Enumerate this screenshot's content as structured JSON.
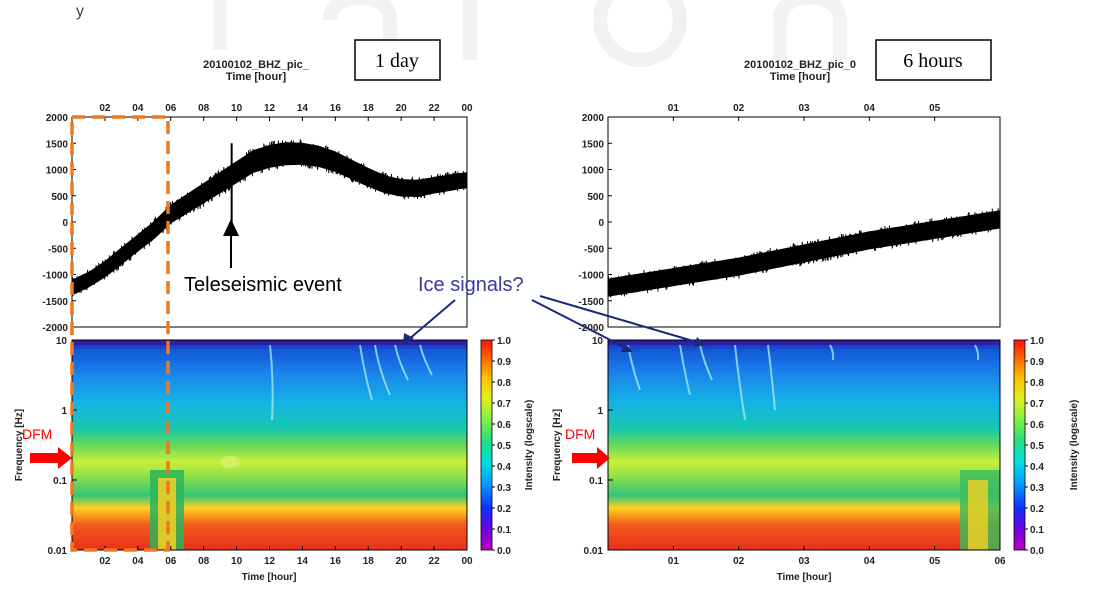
{
  "watermark": "y",
  "colors": {
    "trace": "#000000",
    "highlight_box": "#f07820",
    "arrow_black": "#000000",
    "arrow_ice": "#1a2a7a",
    "ice_text": "#3a3aa0",
    "dfm_arrow": "#ff0000"
  },
  "annotations": {
    "teleseismic": "Teleseismic event",
    "ice": "Ice signals?",
    "dfm_left": "DFM",
    "dfm_right": "DFM"
  },
  "chart_data": [
    {
      "type": "line",
      "panel": "left-waveform",
      "title_line1": "20100102_BHZ_pic_",
      "title_line2": "Time [hour]",
      "box_label": "1 day",
      "x_tick_labels": [
        "02",
        "04",
        "06",
        "08",
        "10",
        "12",
        "14",
        "16",
        "18",
        "20",
        "22",
        "00"
      ],
      "xlim_hours": [
        0,
        24
      ],
      "ylim": [
        -2000,
        2000
      ],
      "y_ticks": [
        -2000,
        -1500,
        -1000,
        -500,
        0,
        500,
        1000,
        1500,
        2000
      ],
      "series": [
        {
          "x": [
            0,
            1,
            2,
            3,
            4,
            5,
            6,
            7,
            8,
            9,
            10,
            11,
            12,
            13,
            14,
            15,
            16,
            17,
            18,
            19,
            20,
            21,
            22,
            23,
            24
          ],
          "y": [
            -1250,
            -1100,
            -900,
            -650,
            -400,
            -150,
            150,
            350,
            550,
            750,
            950,
            1150,
            1250,
            1300,
            1300,
            1250,
            1150,
            1000,
            850,
            720,
            650,
            640,
            700,
            750,
            800
          ],
          "amplitude": [
            200,
            200,
            210,
            220,
            220,
            230,
            240,
            250,
            260,
            270,
            280,
            290,
            290,
            290,
            280,
            270,
            260,
            250,
            240,
            230,
            220,
            220,
            210,
            210,
            200
          ]
        }
      ],
      "event": {
        "x": 9.7,
        "y_max": 1500,
        "y_min": -50
      },
      "highlight_hours": [
        0,
        6
      ]
    },
    {
      "type": "heatmap",
      "panel": "left-spectrogram",
      "xlabel": "Time [hour]",
      "ylabel": "Frequency [Hz]",
      "x_tick_labels": [
        "02",
        "04",
        "06",
        "08",
        "10",
        "12",
        "14",
        "16",
        "18",
        "20",
        "22",
        "00"
      ],
      "xlim_hours": [
        0,
        24
      ],
      "ylim": [
        0.01,
        10
      ],
      "y_scale": "log",
      "y_tick_labels": [
        "0.01",
        "0.1",
        "1",
        "10"
      ],
      "colorbar_label": "Intensity (logscale)",
      "colorbar_ticks": [
        "0.0",
        "0.1",
        "0.2",
        "0.3",
        "0.4",
        "0.5",
        "0.6",
        "0.7",
        "0.8",
        "0.9",
        "1.0"
      ]
    },
    {
      "type": "line",
      "panel": "right-waveform",
      "title_line1": "20100102_BHZ_pic_0",
      "title_line2": "Time [hour]",
      "box_label": "6 hours",
      "x_tick_labels": [
        "01",
        "02",
        "03",
        "04",
        "05"
      ],
      "xlim_hours": [
        0,
        6
      ],
      "ylim": [
        -2000,
        2000
      ],
      "y_ticks": [
        -2000,
        -1500,
        -1000,
        -500,
        0,
        500,
        1000,
        1500,
        2000
      ],
      "series": [
        {
          "x": [
            0,
            1,
            2,
            3,
            4,
            5,
            6
          ],
          "y": [
            -1250,
            -1050,
            -850,
            -600,
            -350,
            -150,
            50
          ],
          "amplitude": [
            230,
            230,
            230,
            230,
            230,
            230,
            230
          ]
        }
      ]
    },
    {
      "type": "heatmap",
      "panel": "right-spectrogram",
      "xlabel": "Time [hour]",
      "ylabel": "Frequency [Hz]",
      "x_tick_labels": [
        "01",
        "02",
        "03",
        "04",
        "05",
        "06"
      ],
      "xlim_hours": [
        0,
        6
      ],
      "ylim": [
        0.01,
        10
      ],
      "y_scale": "log",
      "y_tick_labels": [
        "0.01",
        "0.1",
        "1",
        "10"
      ],
      "colorbar_label": "Intensity (logscale)",
      "colorbar_ticks": [
        "0.0",
        "0.1",
        "0.2",
        "0.3",
        "0.4",
        "0.5",
        "0.6",
        "0.7",
        "0.8",
        "0.9",
        "1.0"
      ]
    }
  ]
}
